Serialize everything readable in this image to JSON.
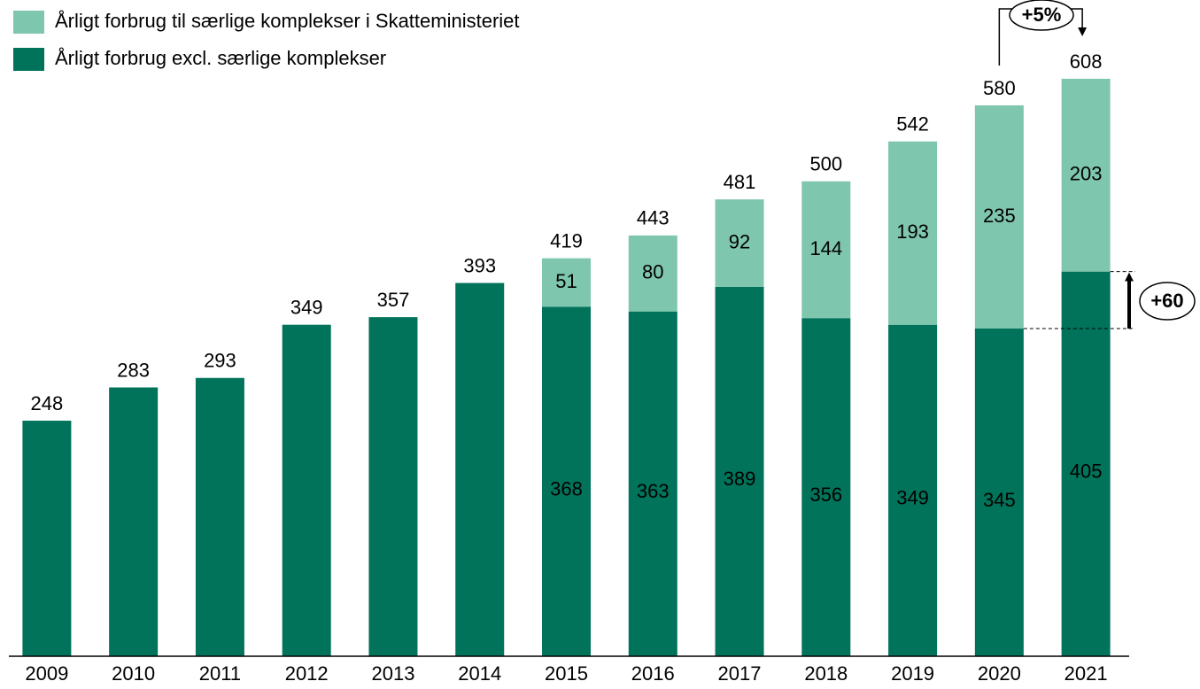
{
  "chart_data": {
    "type": "stacked_bar",
    "categories": [
      "2009",
      "2010",
      "2011",
      "2012",
      "2013",
      "2014",
      "2015",
      "2016",
      "2017",
      "2018",
      "2019",
      "2020",
      "2021"
    ],
    "series": [
      {
        "name": "Årligt forbrug excl. særlige komplekser",
        "color": "#00735a",
        "values": [
          248,
          283,
          293,
          349,
          357,
          393,
          368,
          363,
          389,
          356,
          349,
          345,
          405
        ]
      },
      {
        "name": "Årligt forbrug til særlige komplekser i Skatteministeriet",
        "color": "#7fc6ae",
        "values": [
          null,
          null,
          null,
          null,
          null,
          null,
          51,
          80,
          92,
          144,
          193,
          235,
          203
        ]
      }
    ],
    "totals": [
      248,
      283,
      293,
      349,
      357,
      393,
      419,
      443,
      481,
      500,
      542,
      580,
      608
    ],
    "ylim": [
      0,
      690
    ],
    "annotations": [
      {
        "text": "+60"
      },
      {
        "text": "+5%"
      }
    ]
  }
}
